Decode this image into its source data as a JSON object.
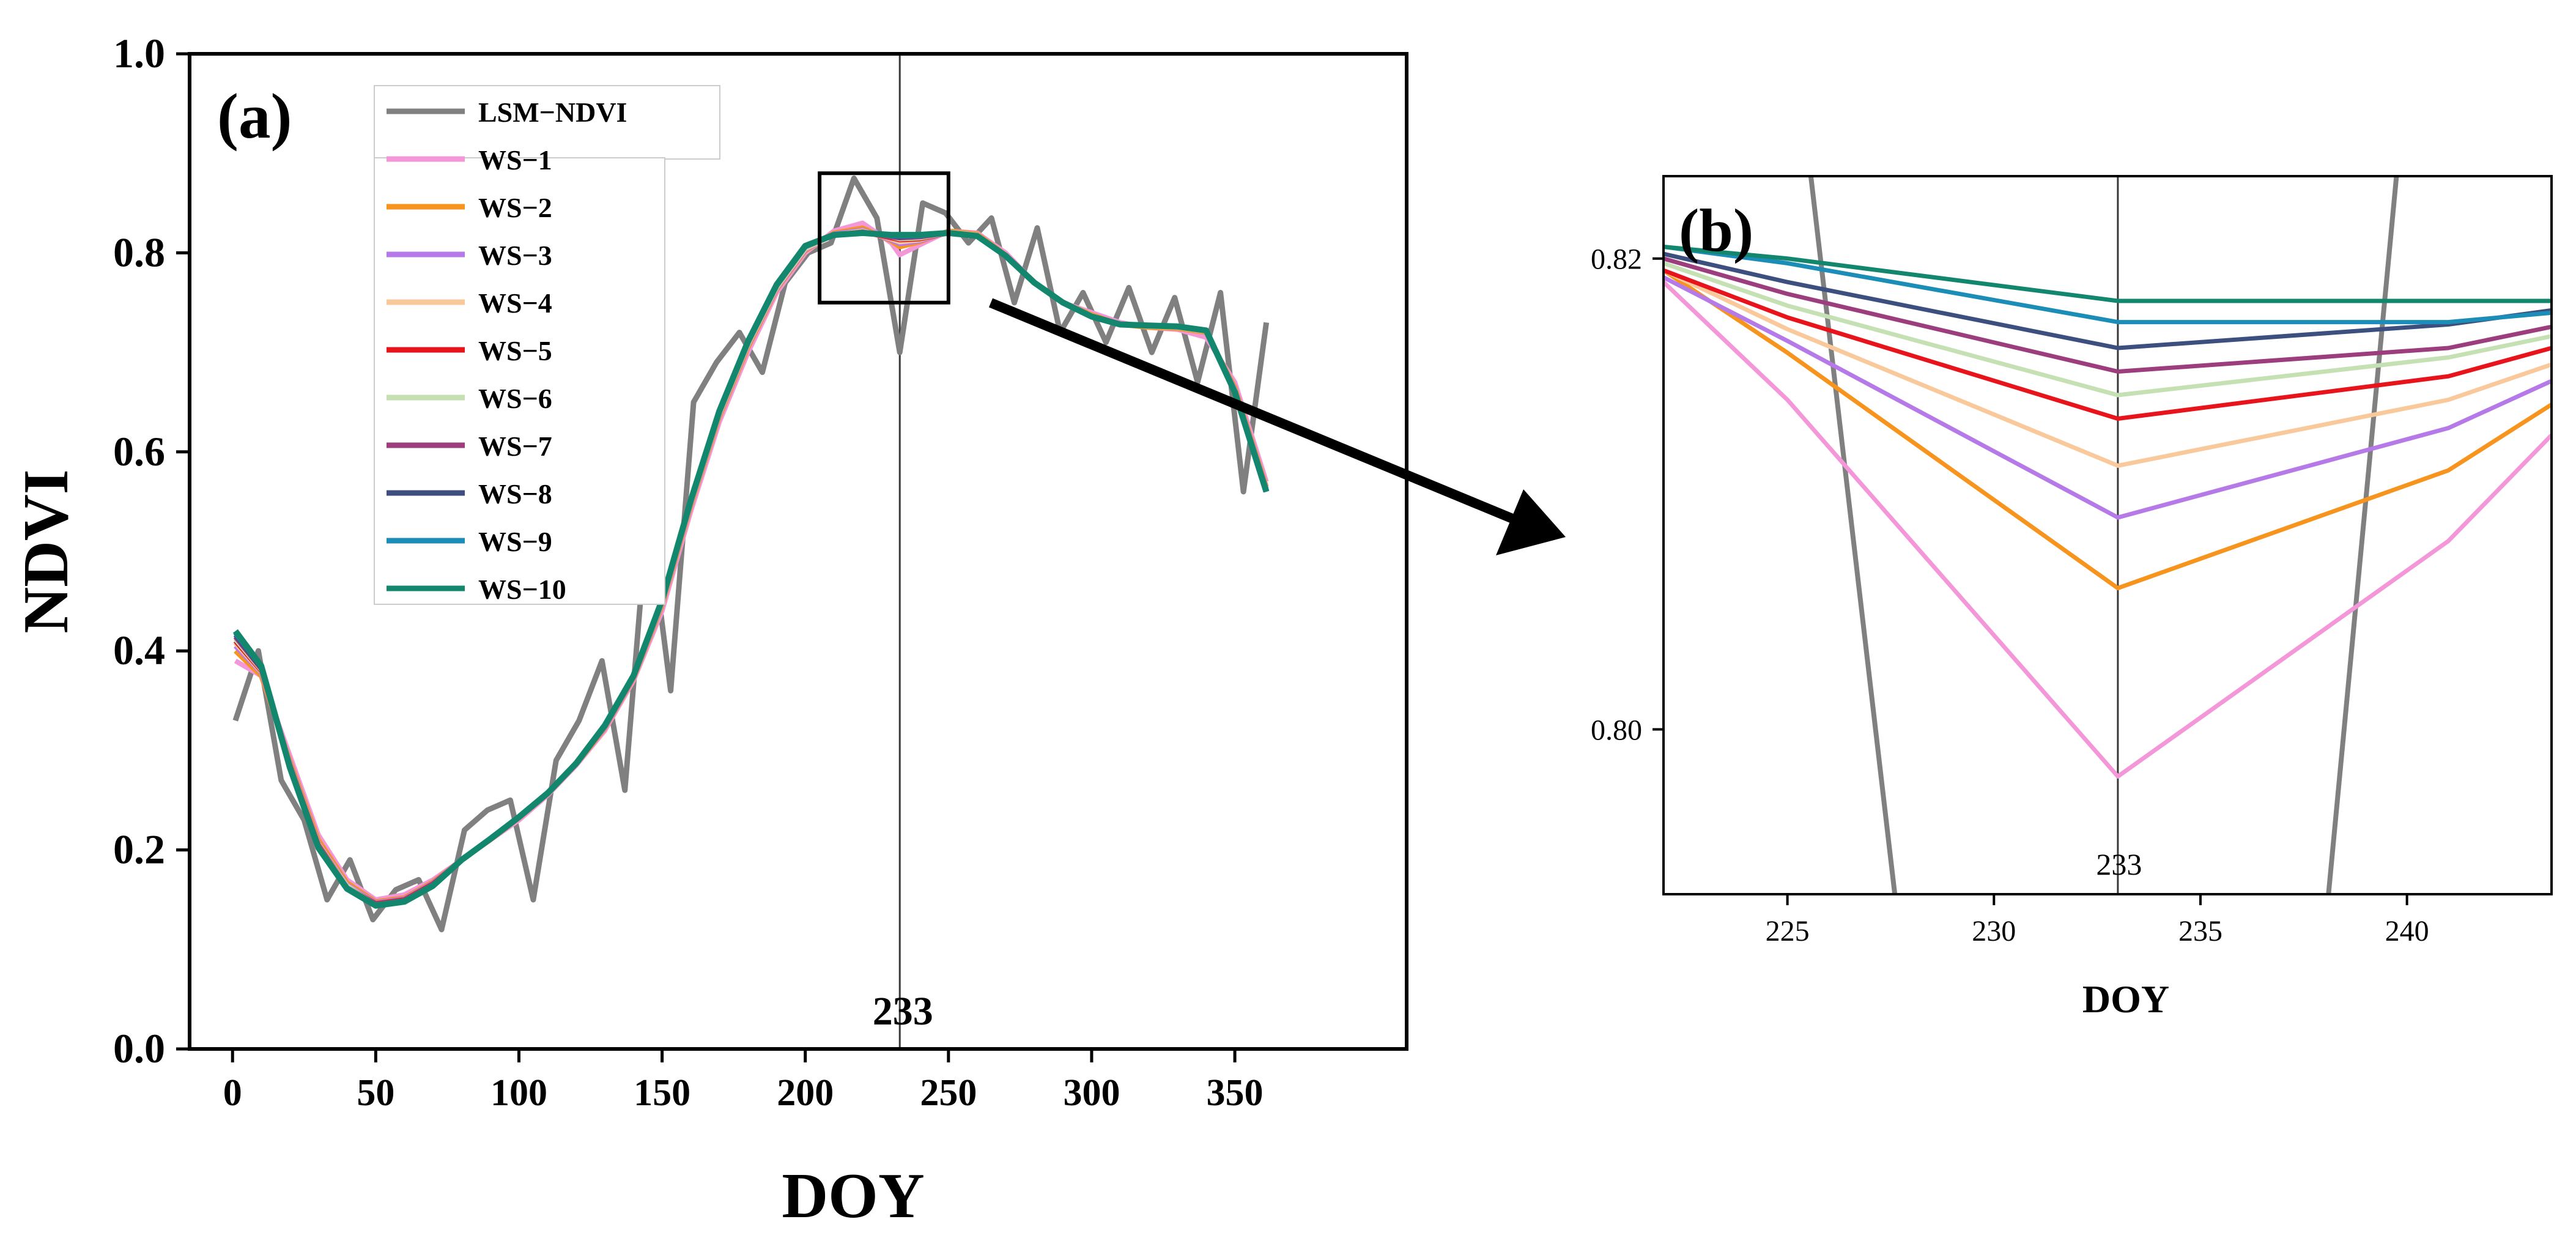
{
  "chart_data": [
    {
      "panel": "a",
      "panel_label": "(a)",
      "type": "line",
      "xlabel": "DOY",
      "ylabel": "NDVI",
      "xlim": [
        -15,
        410
      ],
      "ylim": [
        0.0,
        1.0
      ],
      "x_ticks": [
        0,
        50,
        100,
        150,
        200,
        250,
        300,
        350
      ],
      "y_ticks": [
        0.0,
        0.2,
        0.4,
        0.6,
        0.8,
        1.0
      ],
      "x_tick_labels": [
        "0",
        "50",
        "100",
        "150",
        "200",
        "250",
        "300",
        "350"
      ],
      "y_tick_labels": [
        "0.0",
        "0.2",
        "0.4",
        "0.6",
        "0.8",
        "1.0"
      ],
      "vline": {
        "x": 233,
        "label": "233"
      },
      "zoom_box": {
        "x0": 205,
        "x1": 250,
        "y0": 0.75,
        "y1": 0.88
      },
      "legend_position": "upper-left",
      "raw_series": {
        "name": "LSM−NDVI",
        "color": "#808080",
        "x": [
          1,
          9,
          17,
          25,
          33,
          41,
          49,
          57,
          65,
          73,
          81,
          89,
          97,
          105,
          113,
          121,
          129,
          137,
          145,
          153,
          161,
          169,
          177,
          185,
          193,
          201,
          209,
          217,
          225,
          233,
          241,
          249,
          257,
          265,
          273,
          281,
          289,
          297,
          305,
          313,
          321,
          329,
          337,
          345,
          353,
          361
        ],
        "y": [
          0.33,
          0.4,
          0.27,
          0.23,
          0.15,
          0.19,
          0.13,
          0.16,
          0.17,
          0.12,
          0.22,
          0.24,
          0.25,
          0.15,
          0.29,
          0.33,
          0.39,
          0.26,
          0.54,
          0.36,
          0.65,
          0.69,
          0.72,
          0.68,
          0.77,
          0.8,
          0.81,
          0.875,
          0.835,
          0.7,
          0.85,
          0.84,
          0.81,
          0.835,
          0.75,
          0.825,
          0.72,
          0.76,
          0.71,
          0.765,
          0.7,
          0.755,
          0.67,
          0.76,
          0.56,
          0.73
        ]
      },
      "smooth_x": [
        1,
        10,
        20,
        30,
        40,
        50,
        60,
        70,
        80,
        90,
        100,
        110,
        120,
        130,
        140,
        150,
        160,
        170,
        180,
        190,
        200,
        210,
        220,
        230,
        233,
        240,
        250,
        260,
        270,
        280,
        290,
        300,
        310,
        320,
        330,
        340,
        350,
        361
      ],
      "smooth_series": [
        {
          "name": "WS−1",
          "color": "#F497D9",
          "y": [
            0.39,
            0.375,
            0.295,
            0.215,
            0.17,
            0.15,
            0.155,
            0.17,
            0.19,
            0.21,
            0.23,
            0.255,
            0.285,
            0.32,
            0.37,
            0.44,
            0.54,
            0.63,
            0.7,
            0.76,
            0.8,
            0.822,
            0.83,
            0.81,
            0.798,
            0.808,
            0.822,
            0.82,
            0.8,
            0.77,
            0.75,
            0.74,
            0.73,
            0.725,
            0.723,
            0.715,
            0.67,
            0.57
          ]
        },
        {
          "name": "WS−2",
          "color": "#F7941D",
          "y": [
            0.4,
            0.375,
            0.29,
            0.21,
            0.167,
            0.148,
            0.152,
            0.168,
            0.19,
            0.21,
            0.232,
            0.256,
            0.286,
            0.322,
            0.372,
            0.445,
            0.545,
            0.635,
            0.705,
            0.763,
            0.802,
            0.82,
            0.825,
            0.812,
            0.806,
            0.811,
            0.822,
            0.819,
            0.798,
            0.77,
            0.75,
            0.738,
            0.728,
            0.725,
            0.724,
            0.72,
            0.665,
            0.565
          ]
        },
        {
          "name": "WS−3",
          "color": "#B57AE8",
          "y": [
            0.405,
            0.378,
            0.288,
            0.207,
            0.165,
            0.147,
            0.151,
            0.167,
            0.19,
            0.211,
            0.233,
            0.257,
            0.287,
            0.323,
            0.373,
            0.447,
            0.547,
            0.637,
            0.707,
            0.764,
            0.803,
            0.819,
            0.823,
            0.813,
            0.809,
            0.812,
            0.821,
            0.818,
            0.797,
            0.77,
            0.75,
            0.737,
            0.728,
            0.726,
            0.725,
            0.721,
            0.663,
            0.563
          ]
        },
        {
          "name": "WS−4",
          "color": "#F9C89B",
          "y": [
            0.408,
            0.379,
            0.287,
            0.206,
            0.164,
            0.146,
            0.15,
            0.166,
            0.19,
            0.211,
            0.233,
            0.257,
            0.287,
            0.324,
            0.374,
            0.448,
            0.548,
            0.638,
            0.708,
            0.765,
            0.804,
            0.818,
            0.822,
            0.814,
            0.811,
            0.813,
            0.821,
            0.818,
            0.797,
            0.77,
            0.75,
            0.737,
            0.728,
            0.726,
            0.725,
            0.721,
            0.662,
            0.562
          ]
        },
        {
          "name": "WS−5",
          "color": "#E8141B",
          "y": [
            0.41,
            0.38,
            0.286,
            0.205,
            0.163,
            0.146,
            0.15,
            0.166,
            0.19,
            0.211,
            0.233,
            0.257,
            0.287,
            0.324,
            0.374,
            0.449,
            0.549,
            0.639,
            0.709,
            0.766,
            0.805,
            0.818,
            0.821,
            0.815,
            0.813,
            0.814,
            0.82,
            0.817,
            0.797,
            0.77,
            0.75,
            0.736,
            0.728,
            0.727,
            0.726,
            0.722,
            0.661,
            0.561
          ]
        },
        {
          "name": "WS−6",
          "color": "#C5E0B3",
          "y": [
            0.412,
            0.381,
            0.285,
            0.204,
            0.163,
            0.145,
            0.149,
            0.165,
            0.19,
            0.211,
            0.233,
            0.257,
            0.287,
            0.324,
            0.374,
            0.449,
            0.549,
            0.639,
            0.709,
            0.766,
            0.805,
            0.818,
            0.821,
            0.816,
            0.814,
            0.815,
            0.82,
            0.817,
            0.797,
            0.77,
            0.75,
            0.736,
            0.728,
            0.727,
            0.726,
            0.722,
            0.661,
            0.561
          ]
        },
        {
          "name": "WS−7",
          "color": "#9C3D7E",
          "y": [
            0.414,
            0.382,
            0.284,
            0.204,
            0.162,
            0.145,
            0.149,
            0.165,
            0.19,
            0.211,
            0.233,
            0.257,
            0.287,
            0.325,
            0.375,
            0.45,
            0.55,
            0.64,
            0.71,
            0.767,
            0.806,
            0.818,
            0.821,
            0.816,
            0.815,
            0.816,
            0.82,
            0.817,
            0.797,
            0.77,
            0.75,
            0.736,
            0.728,
            0.727,
            0.726,
            0.722,
            0.66,
            0.56
          ]
        },
        {
          "name": "WS−8",
          "color": "#3C4F7F",
          "y": [
            0.416,
            0.383,
            0.284,
            0.203,
            0.162,
            0.145,
            0.149,
            0.165,
            0.19,
            0.211,
            0.233,
            0.257,
            0.287,
            0.325,
            0.375,
            0.45,
            0.55,
            0.64,
            0.71,
            0.767,
            0.806,
            0.818,
            0.82,
            0.817,
            0.816,
            0.817,
            0.82,
            0.817,
            0.797,
            0.77,
            0.75,
            0.736,
            0.728,
            0.727,
            0.726,
            0.722,
            0.66,
            0.56
          ]
        },
        {
          "name": "WS−9",
          "color": "#1C8DB6",
          "y": [
            0.418,
            0.384,
            0.283,
            0.203,
            0.162,
            0.145,
            0.149,
            0.165,
            0.19,
            0.211,
            0.233,
            0.257,
            0.287,
            0.325,
            0.375,
            0.45,
            0.55,
            0.64,
            0.71,
            0.767,
            0.806,
            0.818,
            0.82,
            0.817,
            0.817,
            0.817,
            0.82,
            0.817,
            0.797,
            0.77,
            0.75,
            0.736,
            0.728,
            0.727,
            0.726,
            0.722,
            0.66,
            0.56
          ]
        },
        {
          "name": "WS−10",
          "color": "#13876E",
          "y": [
            0.42,
            0.385,
            0.283,
            0.202,
            0.161,
            0.144,
            0.148,
            0.164,
            0.19,
            0.211,
            0.233,
            0.257,
            0.287,
            0.325,
            0.375,
            0.451,
            0.551,
            0.641,
            0.711,
            0.768,
            0.807,
            0.818,
            0.82,
            0.818,
            0.818,
            0.818,
            0.82,
            0.817,
            0.797,
            0.77,
            0.75,
            0.736,
            0.728,
            0.727,
            0.726,
            0.722,
            0.66,
            0.56
          ]
        }
      ]
    },
    {
      "panel": "b",
      "panel_label": "(b)",
      "type": "line",
      "xlabel": "DOY",
      "ylabel": "",
      "xlim": [
        222,
        243.5
      ],
      "ylim": [
        0.793,
        0.8235
      ],
      "x_ticks": [
        225,
        230,
        235,
        240
      ],
      "y_ticks": [
        0.8,
        0.82
      ],
      "x_tick_labels": [
        "225",
        "230",
        "235",
        "240"
      ],
      "y_tick_labels": [
        "0.80",
        "0.82"
      ],
      "vline": {
        "x": 233,
        "label": "233"
      },
      "raw_series": {
        "name": "LSM−NDVI",
        "color": "#808080",
        "x": [
          225.5,
          227.6,
          238.1,
          239.8
        ],
        "y": [
          0.8245,
          0.793,
          0.793,
          0.8245
        ]
      },
      "smooth_x": [
        222,
        225,
        233,
        241,
        243.5
      ],
      "smooth_series": [
        {
          "name": "WS−1",
          "color": "#F497D9",
          "y": [
            0.819,
            0.814,
            0.798,
            0.808,
            0.8125
          ]
        },
        {
          "name": "WS−2",
          "color": "#F7941D",
          "y": [
            0.8195,
            0.816,
            0.806,
            0.811,
            0.8138
          ]
        },
        {
          "name": "WS−3",
          "color": "#B57AE8",
          "y": [
            0.8192,
            0.8165,
            0.809,
            0.8128,
            0.8148
          ]
        },
        {
          "name": "WS−4",
          "color": "#F9C89B",
          "y": [
            0.8195,
            0.817,
            0.8112,
            0.814,
            0.8155
          ]
        },
        {
          "name": "WS−5",
          "color": "#E8141B",
          "y": [
            0.8195,
            0.8175,
            0.8132,
            0.815,
            0.8162
          ]
        },
        {
          "name": "WS−6",
          "color": "#C5E0B3",
          "y": [
            0.8198,
            0.818,
            0.8142,
            0.8158,
            0.8167
          ]
        },
        {
          "name": "WS−7",
          "color": "#9C3D7E",
          "y": [
            0.82,
            0.8185,
            0.8152,
            0.8162,
            0.8171
          ]
        },
        {
          "name": "WS−8",
          "color": "#3C4F7F",
          "y": [
            0.8202,
            0.819,
            0.8162,
            0.8172,
            0.8178
          ]
        },
        {
          "name": "WS−9",
          "color": "#1C8DB6",
          "y": [
            0.8205,
            0.8198,
            0.8173,
            0.8173,
            0.8177
          ]
        },
        {
          "name": "WS−10",
          "color": "#13876E",
          "y": [
            0.8205,
            0.82,
            0.8182,
            0.8182,
            0.8182
          ]
        }
      ]
    }
  ]
}
